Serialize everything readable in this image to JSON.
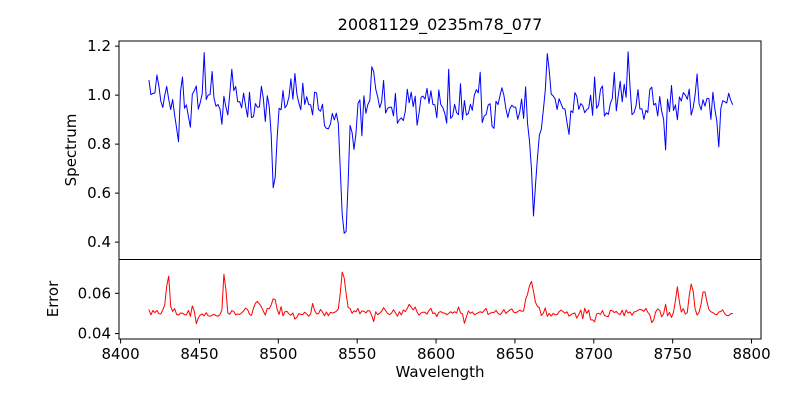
{
  "figure": {
    "title": "20081129_0235m78_077",
    "background_color": "#ffffff",
    "text_color": "#000000"
  },
  "chart_data": {
    "type": "line",
    "title": "20081129_0235m78_077",
    "xlabel": "Wavelength",
    "xlim": [
      8399,
      8806
    ],
    "xticks": [
      8400,
      8450,
      8500,
      8550,
      8600,
      8650,
      8700,
      8750,
      8800
    ],
    "xtick_labels": [
      "8400",
      "8450",
      "8500",
      "8550",
      "8600",
      "8650",
      "8700",
      "8750",
      "8800"
    ],
    "grid": false,
    "legend": "none",
    "charts": [
      {
        "name": "spectrum",
        "ylabel": "Spectrum",
        "color": "#0000ff",
        "ylim": [
          0.329,
          1.221
        ],
        "yticks": [
          0.4,
          0.6,
          0.8,
          1.0,
          1.2
        ],
        "ytick_labels": [
          "0.4",
          "0.6",
          "0.8",
          "1.0",
          "1.2"
        ],
        "x_start": 8418,
        "x_end": 8788,
        "x_step": 1.25,
        "baseline": 0.965,
        "noise_sigma": 0.046,
        "seed": 20081129,
        "features": [
          {
            "center": 8497.5,
            "amplitude": -0.3,
            "sigma": 1.2
          },
          {
            "center": 8497.5,
            "amplitude": -0.06,
            "sigma": 3.0
          },
          {
            "center": 8542.0,
            "amplitude": -0.47,
            "sigma": 2.0
          },
          {
            "center": 8542.0,
            "amplitude": -0.1,
            "sigma": 5.5
          },
          {
            "center": 8662.0,
            "amplitude": -0.36,
            "sigma": 1.8
          },
          {
            "center": 8662.0,
            "amplitude": -0.08,
            "sigma": 4.5
          },
          {
            "center": 8436,
            "amplitude": -0.12,
            "sigma": 0.7
          },
          {
            "center": 8453,
            "amplitude": 0.19,
            "sigma": 0.7
          },
          {
            "center": 8471,
            "amplitude": 0.12,
            "sigma": 0.7
          },
          {
            "center": 8503,
            "amplitude": 0.16,
            "sigma": 0.7
          },
          {
            "center": 8532,
            "amplitude": -0.13,
            "sigma": 0.7
          },
          {
            "center": 8560,
            "amplitude": 0.15,
            "sigma": 0.7
          },
          {
            "center": 8577,
            "amplitude": -0.1,
            "sigma": 0.7
          },
          {
            "center": 8610,
            "amplitude": -0.13,
            "sigma": 0.7
          },
          {
            "center": 8628,
            "amplitude": 0.12,
            "sigma": 0.7
          },
          {
            "center": 8671,
            "amplitude": 0.25,
            "sigma": 0.7
          },
          {
            "center": 8684,
            "amplitude": -0.12,
            "sigma": 0.7
          },
          {
            "center": 8705,
            "amplitude": 0.1,
            "sigma": 0.7
          },
          {
            "center": 8722,
            "amplitude": 0.21,
            "sigma": 0.7
          },
          {
            "center": 8745,
            "amplitude": -0.15,
            "sigma": 0.7
          },
          {
            "center": 8765,
            "amplitude": 0.17,
            "sigma": 0.7
          },
          {
            "center": 8779,
            "amplitude": -0.1,
            "sigma": 0.7
          }
        ],
        "notable_points": [
          {
            "x": 8498,
            "y": 0.61,
            "note": "absorption line minimum"
          },
          {
            "x": 8542,
            "y": 0.38,
            "note": "deepest absorption line minimum"
          },
          {
            "x": 8662,
            "y": 0.52,
            "note": "absorption line minimum"
          },
          {
            "x": 8671,
            "y": 1.22,
            "note": "highest spike, touches top frame"
          }
        ]
      },
      {
        "name": "error",
        "ylabel": "Error",
        "color": "#ff0000",
        "ylim": [
          0.0373,
          0.0768
        ],
        "yticks": [
          0.04,
          0.06
        ],
        "ytick_labels": [
          "0.04",
          "0.06"
        ],
        "x_start": 8418,
        "x_end": 8788,
        "x_step": 1.25,
        "baseline": 0.0503,
        "noise_sigma": 0.0012,
        "seed": 77,
        "features": [
          {
            "center": 8430,
            "amplitude": 0.021,
            "sigma": 0.9
          },
          {
            "center": 8466,
            "amplitude": 0.02,
            "sigma": 0.9
          },
          {
            "center": 8487,
            "amplitude": 0.005,
            "sigma": 1.5
          },
          {
            "center": 8497,
            "amplitude": 0.007,
            "sigma": 1.5
          },
          {
            "center": 8522,
            "amplitude": 0.005,
            "sigma": 0.8
          },
          {
            "center": 8541,
            "amplitude": 0.021,
            "sigma": 1.4
          },
          {
            "center": 8583,
            "amplitude": 0.004,
            "sigma": 2.0
          },
          {
            "center": 8660,
            "amplitude": 0.016,
            "sigma": 2.2
          },
          {
            "center": 8753,
            "amplitude": 0.011,
            "sigma": 1.2
          },
          {
            "center": 8762,
            "amplitude": 0.015,
            "sigma": 1.2
          },
          {
            "center": 8770,
            "amplitude": 0.012,
            "sigma": 1.2
          },
          {
            "center": 8448,
            "amplitude": -0.006,
            "sigma": 0.7
          },
          {
            "center": 8560,
            "amplitude": -0.005,
            "sigma": 0.7
          },
          {
            "center": 8618,
            "amplitude": -0.005,
            "sigma": 0.7
          },
          {
            "center": 8700,
            "amplitude": -0.005,
            "sigma": 0.7
          },
          {
            "center": 8737,
            "amplitude": -0.007,
            "sigma": 0.7
          },
          {
            "center": 8784,
            "amplitude": -0.004,
            "sigma": 0.7
          }
        ],
        "notable_points": [
          {
            "x": 8430,
            "y": 0.073,
            "note": "error peak"
          },
          {
            "x": 8466,
            "y": 0.071,
            "note": "error peak"
          },
          {
            "x": 8542,
            "y": 0.072,
            "note": "error peak"
          },
          {
            "x": 8660,
            "y": 0.068,
            "note": "error peak"
          },
          {
            "x": 8762,
            "y": 0.067,
            "note": "error peak cluster"
          }
        ]
      }
    ]
  }
}
